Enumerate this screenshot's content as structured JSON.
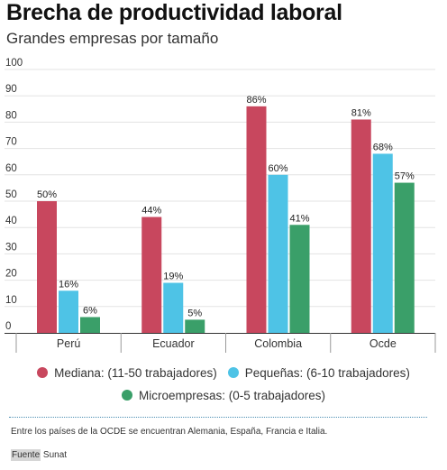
{
  "title": "Brecha de productividad laboral",
  "subtitle": "Grandes empresas por tamaño",
  "note": "Entre los países de la OCDE se encuentran Alemania, España, Francia e Italia.",
  "source": {
    "label": "Fuente",
    "value": "Sunat"
  },
  "chart_data": {
    "type": "bar",
    "title": "Brecha de productividad laboral",
    "subtitle": "Grandes empresas por tamaño",
    "categories": [
      "Perú",
      "Ecuador",
      "Colombia",
      "Ocde"
    ],
    "series": [
      {
        "name": "Mediana: (11-50 trabajadores)",
        "values": [
          50,
          44,
          86,
          81
        ],
        "color": "#c8475e"
      },
      {
        "name": "Pequeñas: (6-10 trabajadores)",
        "values": [
          16,
          19,
          60,
          68
        ],
        "color": "#4ec3e6"
      },
      {
        "name": "Microempresas: (0-5 trabajadores)",
        "values": [
          6,
          5,
          41,
          57
        ],
        "color": "#3a9f69"
      }
    ],
    "value_suffix": "%",
    "yticks": [
      0,
      10,
      20,
      30,
      40,
      50,
      60,
      70,
      80,
      90,
      100
    ],
    "ylim": [
      0,
      100
    ],
    "grid": true,
    "legend_position": "bottom"
  }
}
